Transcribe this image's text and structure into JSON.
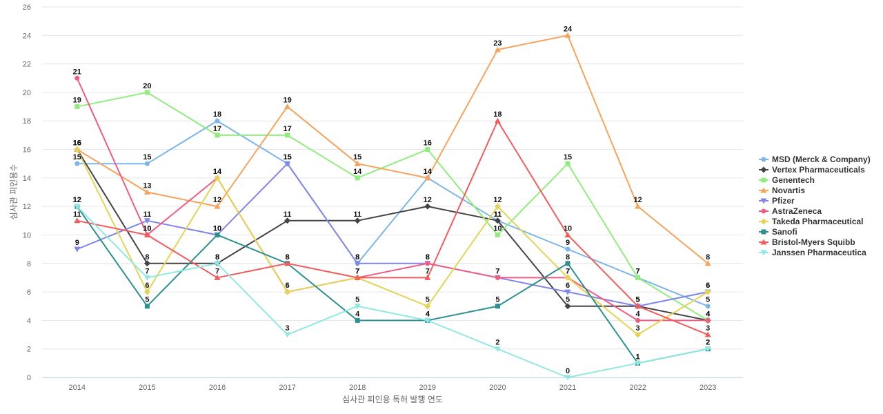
{
  "chart_data": {
    "type": "line",
    "xlabel": "심사관 피인용 특허 발행 연도",
    "ylabel": "심사관 피인용수",
    "categories": [
      "2014",
      "2015",
      "2016",
      "2017",
      "2018",
      "2019",
      "2020",
      "2021",
      "2022",
      "2023"
    ],
    "ylim": [
      0,
      26
    ],
    "yticks": [
      0,
      2,
      4,
      6,
      8,
      10,
      12,
      14,
      16,
      18,
      20,
      22,
      24,
      26
    ],
    "grid": true,
    "legend_position": "right",
    "series": [
      {
        "name": "MSD (Merck & Company)",
        "color": "#7cb5ec",
        "marker": "circle",
        "values": [
          15,
          15,
          18,
          15,
          8,
          14,
          11,
          9,
          7,
          5
        ]
      },
      {
        "name": "Vertex Pharmaceuticals",
        "color": "#434348",
        "marker": "diamond",
        "values": [
          16,
          8,
          8,
          11,
          11,
          12,
          11,
          5,
          5,
          4
        ]
      },
      {
        "name": "Genentech",
        "color": "#90ed7d",
        "marker": "square",
        "values": [
          19,
          20,
          17,
          17,
          14,
          16,
          10,
          15,
          7,
          4
        ]
      },
      {
        "name": "Novartis",
        "color": "#f7a35c",
        "marker": "triangle",
        "values": [
          16,
          13,
          12,
          19,
          15,
          14,
          23,
          24,
          12,
          8
        ]
      },
      {
        "name": "Pfizer",
        "color": "#8085e9",
        "marker": "triangle-down",
        "values": [
          9,
          11,
          10,
          15,
          8,
          8,
          7,
          6,
          5,
          6
        ]
      },
      {
        "name": "AstraZeneca",
        "color": "#f15c80",
        "marker": "circle",
        "values": [
          21,
          10,
          14,
          6,
          7,
          8,
          7,
          7,
          4,
          4
        ]
      },
      {
        "name": "Takeda Pharmaceutical",
        "color": "#e4d354",
        "marker": "diamond",
        "values": [
          16,
          6,
          14,
          6,
          7,
          5,
          12,
          7,
          3,
          6
        ]
      },
      {
        "name": "Sanofi",
        "color": "#2b908f",
        "marker": "square",
        "values": [
          12,
          5,
          10,
          8,
          4,
          4,
          5,
          8,
          1,
          2
        ]
      },
      {
        "name": "Bristol-Myers Squibb",
        "color": "#f45b5b",
        "marker": "triangle",
        "values": [
          11,
          10,
          7,
          8,
          7,
          7,
          18,
          10,
          5,
          3
        ]
      },
      {
        "name": "Janssen Pharmaceutica",
        "color": "#91e8e1",
        "marker": "triangle-down",
        "values": [
          12,
          7,
          8,
          3,
          5,
          4,
          2,
          0,
          1,
          2
        ]
      }
    ]
  }
}
